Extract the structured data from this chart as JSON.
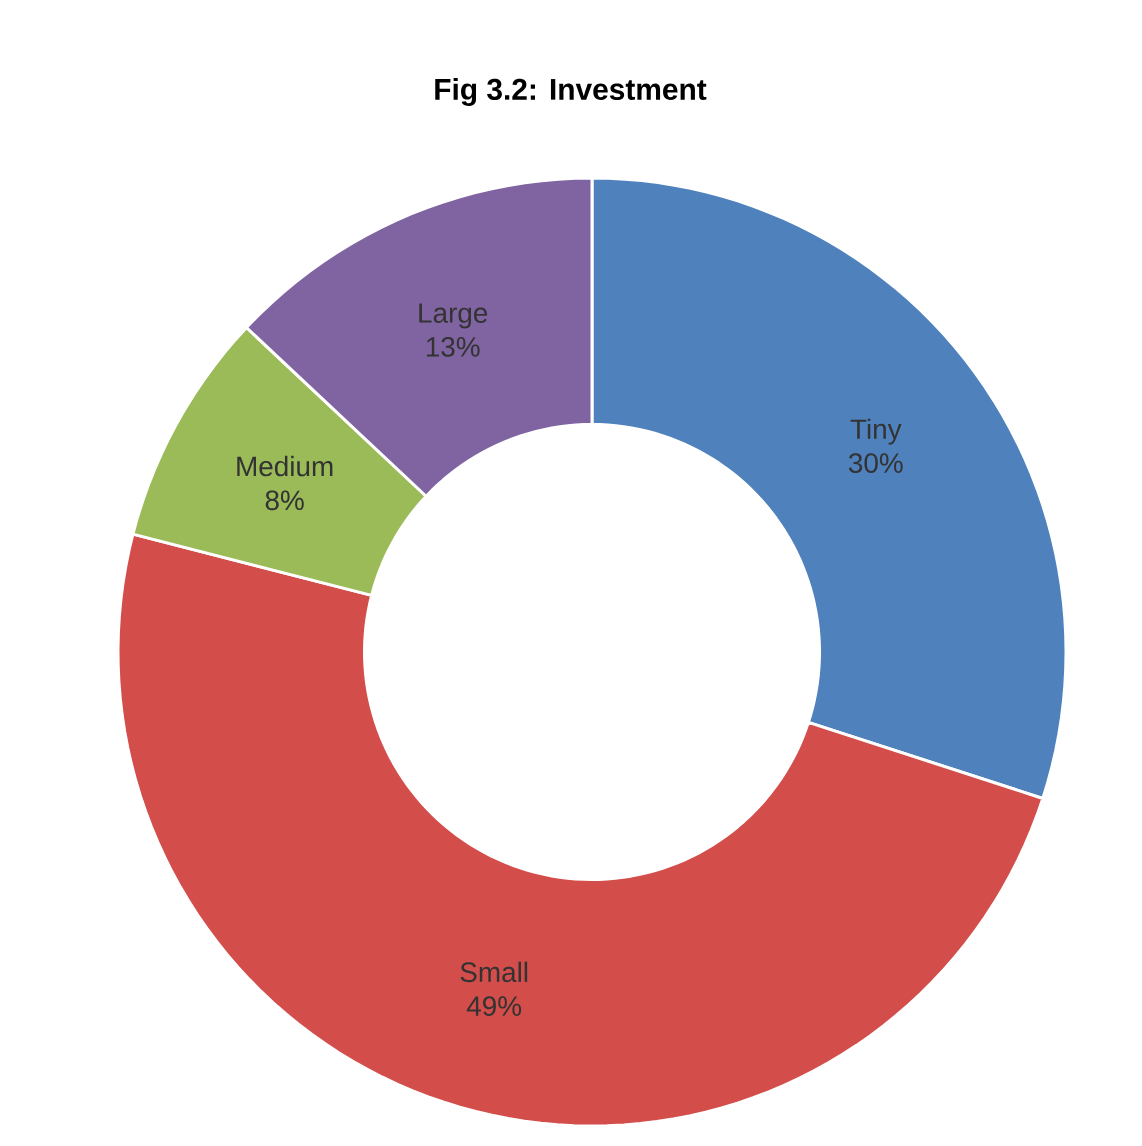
{
  "chart_data": {
    "type": "donut",
    "title": "Fig 3.2: Investment",
    "categories": [
      "Tiny",
      "Small",
      "Medium",
      "Large"
    ],
    "values": [
      30,
      49,
      8,
      13
    ],
    "value_labels": [
      "30%",
      "49%",
      "8%",
      "13%"
    ],
    "colors": [
      "#4f81bd",
      "#d34d4a",
      "#9bbb59",
      "#8064a2"
    ]
  }
}
